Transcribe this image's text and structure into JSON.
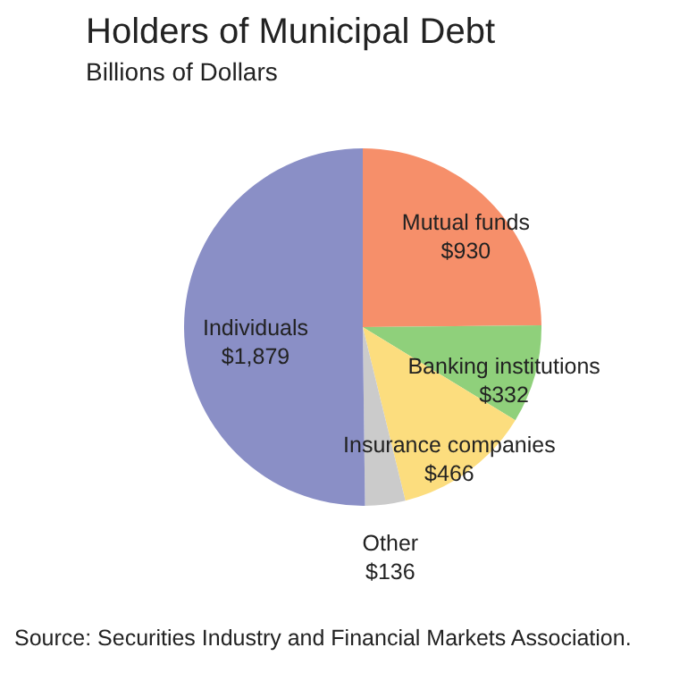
{
  "chart_data": {
    "type": "pie",
    "title": "Holders of Municipal Debt",
    "subtitle": "Billions of Dollars",
    "categories": [
      "Mutual funds",
      "Banking institutions",
      "Insurance companies",
      "Other",
      "Individuals"
    ],
    "values": [
      930,
      332,
      466,
      136,
      1879
    ],
    "colors": [
      "#f68f6a",
      "#8fd07b",
      "#fcdd7e",
      "#cbcbcb",
      "#8a8fc6"
    ],
    "value_labels": [
      "$930",
      "$332",
      "$466",
      "$136",
      "$1,879"
    ],
    "legend": false,
    "annotations": [
      "Source: Securities Industry and Financial Markets Association."
    ]
  }
}
